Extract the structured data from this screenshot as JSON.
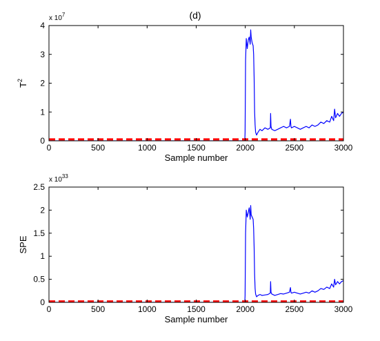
{
  "figure": {
    "title": "(d)"
  },
  "chart_data": [
    {
      "type": "line",
      "title": "(d)",
      "xlabel": "Sample number",
      "ylabel": "T",
      "ylabel_superscript": "2",
      "exponent_label": "x 10",
      "exponent_value": "7",
      "xlim": [
        0,
        3000
      ],
      "ylim": [
        0,
        4
      ],
      "xticks": [
        "0",
        "500",
        "1000",
        "1500",
        "2000",
        "2500",
        "3000"
      ],
      "yticks": [
        "0",
        "1",
        "2",
        "3",
        "4"
      ],
      "grid": false,
      "series": [
        {
          "color": "#0000ff",
          "style": "solid",
          "x": [
            0,
            1995,
            1998,
            2003,
            2010,
            2020,
            2030,
            2040,
            2050,
            2055,
            2060,
            2070,
            2080,
            2085,
            2090,
            2095,
            2100,
            2105,
            2115,
            2130,
            2150,
            2170,
            2200,
            2230,
            2255,
            2258,
            2262,
            2270,
            2300,
            2330,
            2360,
            2390,
            2420,
            2450,
            2460,
            2465,
            2470,
            2500,
            2530,
            2560,
            2590,
            2620,
            2650,
            2680,
            2710,
            2740,
            2770,
            2800,
            2830,
            2860,
            2880,
            2900,
            2910,
            2920,
            2940,
            2960,
            2980,
            3000
          ],
          "values": [
            0,
            0,
            0.3,
            2.8,
            3.55,
            3.2,
            3.5,
            3.6,
            3.35,
            3.85,
            3.6,
            3.4,
            3.3,
            3.0,
            2.2,
            1.0,
            0.55,
            0.3,
            0.2,
            0.3,
            0.4,
            0.35,
            0.45,
            0.4,
            0.45,
            0.95,
            0.5,
            0.4,
            0.35,
            0.4,
            0.45,
            0.5,
            0.45,
            0.5,
            0.75,
            0.5,
            0.45,
            0.5,
            0.45,
            0.4,
            0.45,
            0.5,
            0.45,
            0.55,
            0.5,
            0.55,
            0.65,
            0.6,
            0.7,
            0.65,
            0.85,
            0.7,
            1.1,
            0.8,
            0.95,
            0.85,
            0.95,
            1.0
          ]
        },
        {
          "color": "#ff0000",
          "style": "dashed",
          "x": [
            0,
            3000
          ],
          "values": [
            0.05,
            0.05
          ]
        }
      ]
    },
    {
      "type": "line",
      "title": "",
      "xlabel": "Sample number",
      "ylabel": "SPE",
      "exponent_label": "x 10",
      "exponent_value": "33",
      "xlim": [
        0,
        3000
      ],
      "ylim": [
        0,
        2.5
      ],
      "xticks": [
        "0",
        "500",
        "1000",
        "1500",
        "2000",
        "2500",
        "3000"
      ],
      "yticks": [
        "0",
        "0.5",
        "1",
        "1.5",
        "2",
        "2.5"
      ],
      "grid": false,
      "series": [
        {
          "color": "#0000ff",
          "style": "solid",
          "x": [
            0,
            1995,
            1998,
            2003,
            2010,
            2020,
            2030,
            2040,
            2050,
            2055,
            2060,
            2070,
            2080,
            2085,
            2090,
            2095,
            2100,
            2105,
            2115,
            2130,
            2150,
            2170,
            2200,
            2230,
            2255,
            2258,
            2262,
            2270,
            2300,
            2330,
            2360,
            2390,
            2420,
            2450,
            2460,
            2465,
            2470,
            2500,
            2530,
            2560,
            2590,
            2620,
            2650,
            2680,
            2710,
            2740,
            2770,
            2800,
            2830,
            2860,
            2880,
            2900,
            2910,
            2920,
            2940,
            2960,
            2980,
            3000
          ],
          "values": [
            0,
            0,
            0.15,
            1.5,
            2.0,
            1.85,
            1.95,
            2.05,
            1.8,
            2.1,
            1.9,
            1.85,
            1.8,
            1.6,
            1.2,
            0.6,
            0.3,
            0.18,
            0.12,
            0.15,
            0.17,
            0.15,
            0.16,
            0.17,
            0.2,
            0.45,
            0.22,
            0.18,
            0.15,
            0.17,
            0.19,
            0.18,
            0.2,
            0.22,
            0.32,
            0.22,
            0.2,
            0.22,
            0.2,
            0.18,
            0.2,
            0.22,
            0.2,
            0.25,
            0.22,
            0.25,
            0.3,
            0.28,
            0.33,
            0.3,
            0.4,
            0.33,
            0.5,
            0.38,
            0.45,
            0.4,
            0.45,
            0.47
          ]
        },
        {
          "color": "#ff0000",
          "style": "dashed",
          "x": [
            0,
            3000
          ],
          "values": [
            0.02,
            0.02
          ]
        }
      ]
    }
  ]
}
